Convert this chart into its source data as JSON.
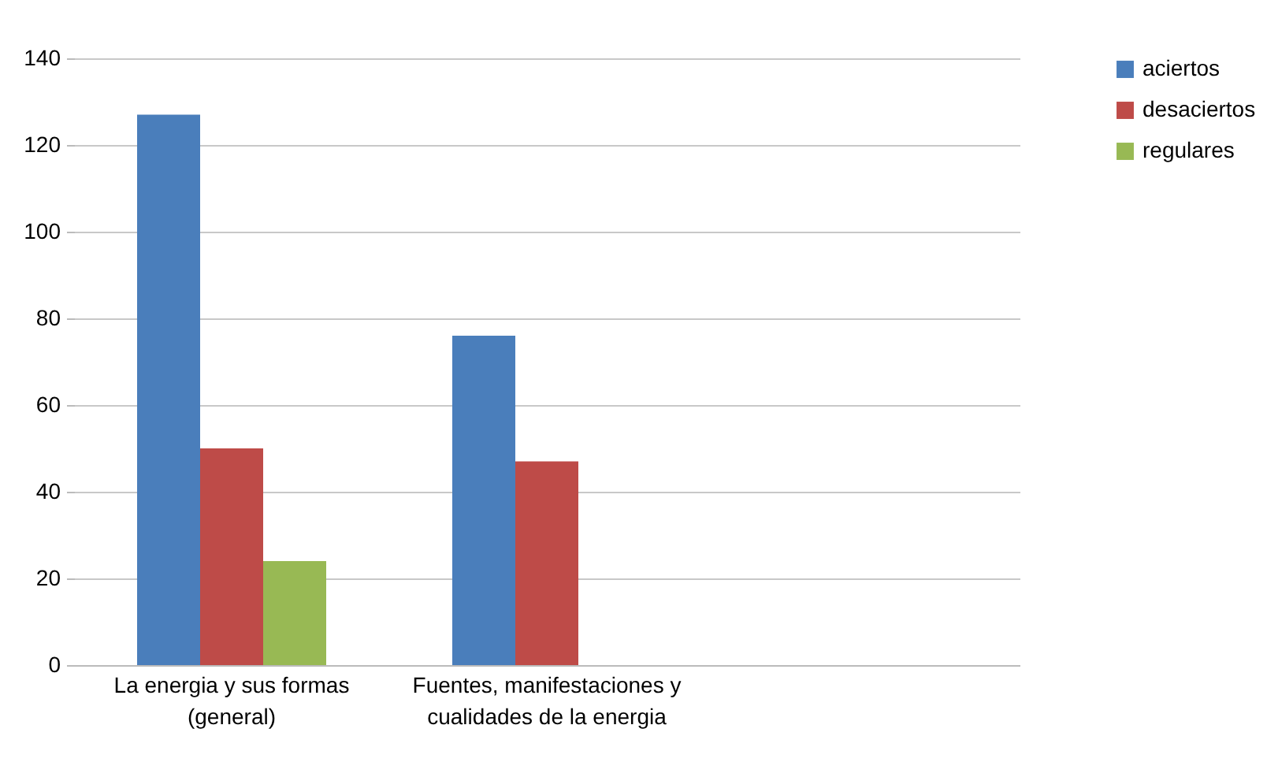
{
  "chart_data": {
    "type": "bar",
    "categories": [
      "La energia y sus formas (general)",
      "Fuentes, manifestaciones y cualidades de la energia",
      null
    ],
    "series": [
      {
        "name": "aciertos",
        "color": "#4a7ebb",
        "values": [
          127,
          76,
          null
        ]
      },
      {
        "name": "desaciertos",
        "color": "#be4b48",
        "values": [
          50,
          47,
          null
        ]
      },
      {
        "name": "regulares",
        "color": "#98b954",
        "values": [
          24,
          null,
          null
        ]
      }
    ],
    "ylim": [
      0,
      140
    ],
    "yticks": [
      0,
      20,
      40,
      60,
      80,
      100,
      120,
      140
    ],
    "grid": "y",
    "legend": "right"
  }
}
